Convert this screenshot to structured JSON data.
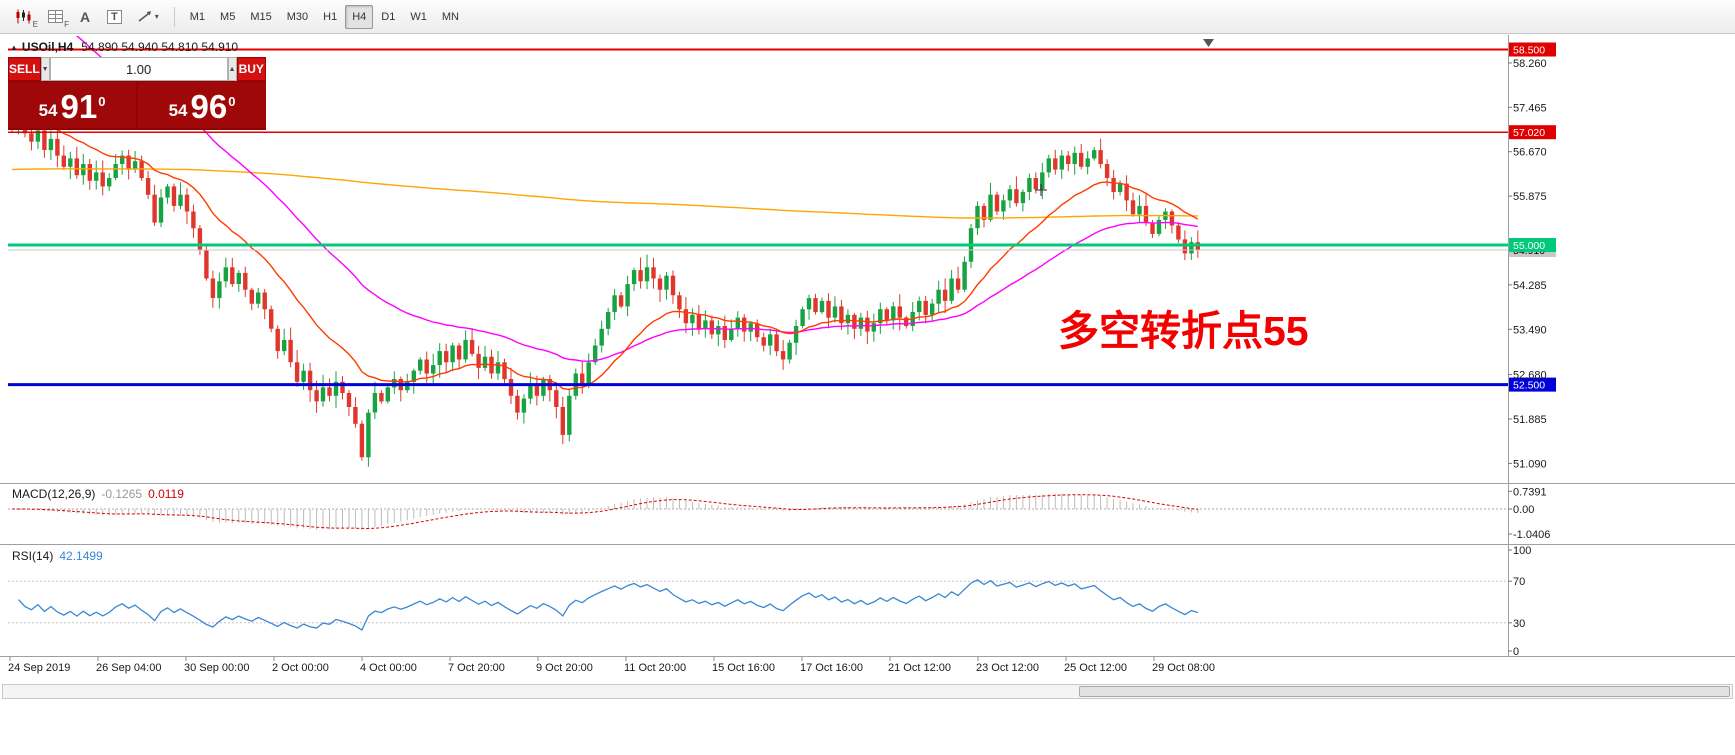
{
  "toolbar": {
    "icons": [
      {
        "name": "candlestick-chart-icon",
        "badge": "E"
      },
      {
        "name": "grid-icon",
        "badge": "F"
      },
      {
        "name": "font-icon",
        "label": "A"
      },
      {
        "name": "text-box-icon",
        "label": "T"
      },
      {
        "name": "trendline-tool-icon",
        "caret": "▾"
      }
    ],
    "timeframes": [
      "M1",
      "M5",
      "M15",
      "M30",
      "H1",
      "H4",
      "D1",
      "W1",
      "MN"
    ],
    "active_timeframe": "H4"
  },
  "trade_panel": {
    "sell_label": "SELL",
    "buy_label": "BUY",
    "volume": "1.00",
    "stepper_down": "▼",
    "stepper_up": "▲",
    "sell_price": {
      "head": "54",
      "big": "91",
      "sup": "0"
    },
    "buy_price": {
      "head": "54",
      "big": "96",
      "sup": "0"
    }
  },
  "chart": {
    "collapse_icon": "▲",
    "symbol": "USOil,H4",
    "ohlc_text": "54.890 54.940 54.810 54.910"
  },
  "chart_data": {
    "type": "candlestick",
    "symbol": "USOil",
    "timeframe": "H4",
    "ohlc_current": {
      "open": 54.89,
      "high": 54.94,
      "low": 54.81,
      "close": 54.91
    },
    "first_open": 57.35,
    "candle_colors": {
      "up": "#17a343",
      "down": "#df372c"
    },
    "closes": [
      57.2,
      57.3,
      57.0,
      56.85,
      57.05,
      56.7,
      56.9,
      56.6,
      56.4,
      56.55,
      56.25,
      56.45,
      56.15,
      56.3,
      56.05,
      56.2,
      56.45,
      56.6,
      56.35,
      56.5,
      56.2,
      55.9,
      55.4,
      55.85,
      56.05,
      55.7,
      55.9,
      55.6,
      55.3,
      54.9,
      54.4,
      54.05,
      54.35,
      54.6,
      54.3,
      54.5,
      54.2,
      53.95,
      54.15,
      53.85,
      53.5,
      53.1,
      53.3,
      52.9,
      52.55,
      52.75,
      52.4,
      52.2,
      52.45,
      52.3,
      52.55,
      52.35,
      52.1,
      51.8,
      51.2,
      52.0,
      52.35,
      52.2,
      52.45,
      52.6,
      52.4,
      52.55,
      52.75,
      52.95,
      52.7,
      52.85,
      53.1,
      52.9,
      53.2,
      52.95,
      53.3,
      53.05,
      52.8,
      53.0,
      52.7,
      52.9,
      52.6,
      52.3,
      52.0,
      52.25,
      52.5,
      52.3,
      52.6,
      52.4,
      52.1,
      51.6,
      52.3,
      52.7,
      52.5,
      52.9,
      53.2,
      53.5,
      53.8,
      54.1,
      53.9,
      54.3,
      54.55,
      54.35,
      54.6,
      54.4,
      54.2,
      54.45,
      54.1,
      53.85,
      53.6,
      53.75,
      53.5,
      53.65,
      53.4,
      53.55,
      53.3,
      53.5,
      53.7,
      53.45,
      53.6,
      53.35,
      53.2,
      53.4,
      53.1,
      52.95,
      53.25,
      53.55,
      53.85,
      54.05,
      53.8,
      54.0,
      53.7,
      53.9,
      53.6,
      53.75,
      53.5,
      53.7,
      53.45,
      53.6,
      53.85,
      53.65,
      53.9,
      53.7,
      53.55,
      53.8,
      54.0,
      53.75,
      53.95,
      54.2,
      54.0,
      54.4,
      54.2,
      54.7,
      55.3,
      55.7,
      55.45,
      55.9,
      55.6,
      55.8,
      56.0,
      55.75,
      55.95,
      56.2,
      56.0,
      56.3,
      56.55,
      56.35,
      56.6,
      56.45,
      56.65,
      56.4,
      56.55,
      56.7,
      56.45,
      56.2,
      55.95,
      56.1,
      55.8,
      55.55,
      55.7,
      55.4,
      55.2,
      55.45,
      55.6,
      55.35,
      55.1,
      54.85,
      55.05,
      54.91
    ],
    "moving_averages": [
      {
        "name": "slow-ma",
        "period": 700,
        "seed": 56.35,
        "color": "#ffa600",
        "width": 1.4
      },
      {
        "name": "medium-ma",
        "period": 45,
        "seed": 60.0,
        "color": "#ff00ff",
        "width": 1.4
      },
      {
        "name": "fast-ma",
        "period": 18,
        "seed": 57.3,
        "color": "#ff3c00",
        "width": 1.4
      }
    ],
    "levels": [
      {
        "price": 58.5,
        "label": "58.500",
        "color": "#e00000",
        "width": 2
      },
      {
        "price": 57.02,
        "label": "57.020",
        "color": "#e00000",
        "width": 1.5
      },
      {
        "price": 55.0,
        "label": "55.000",
        "color": "#00c97a",
        "width": 3
      },
      {
        "price": 52.5,
        "label": "52.500",
        "color": "#0000d8",
        "width": 3
      }
    ],
    "current_price": {
      "price": 54.91,
      "label": "54.910",
      "color": "#c8c8c8",
      "text_color": "#000"
    },
    "y_ticks": [
      "58.260",
      "57.465",
      "56.670",
      "55.875",
      "54.285",
      "53.490",
      "52.680",
      "51.885",
      "51.090"
    ],
    "x_labels": [
      "24 Sep 2019",
      "26 Sep 04:00",
      "30 Sep 00:00",
      "2 Oct 00:00",
      "4 Oct 00:00",
      "7 Oct 20:00",
      "9 Oct 20:00",
      "11 Oct 20:00",
      "15 Oct 16:00",
      "17 Oct 16:00",
      "21 Oct 12:00",
      "23 Oct 12:00",
      "25 Oct 12:00",
      "29 Oct 08:00"
    ],
    "indicators": {
      "macd": {
        "label": "MACD(12,26,9)",
        "value": "-0.1265",
        "signal": "0.0119",
        "axis": [
          "0.7391",
          "0.00",
          "-1.0406"
        ],
        "hist_color": "#bcbcbc",
        "signal_color": "#e00000"
      },
      "rsi": {
        "label": "RSI(14)",
        "value": "42.1499",
        "axis": [
          "100",
          "70",
          "30",
          "0"
        ],
        "levels": [
          70,
          30
        ],
        "line_color": "#3a87d6"
      }
    },
    "annotation": {
      "text": "多空转折点55",
      "color": "#f50000"
    }
  }
}
